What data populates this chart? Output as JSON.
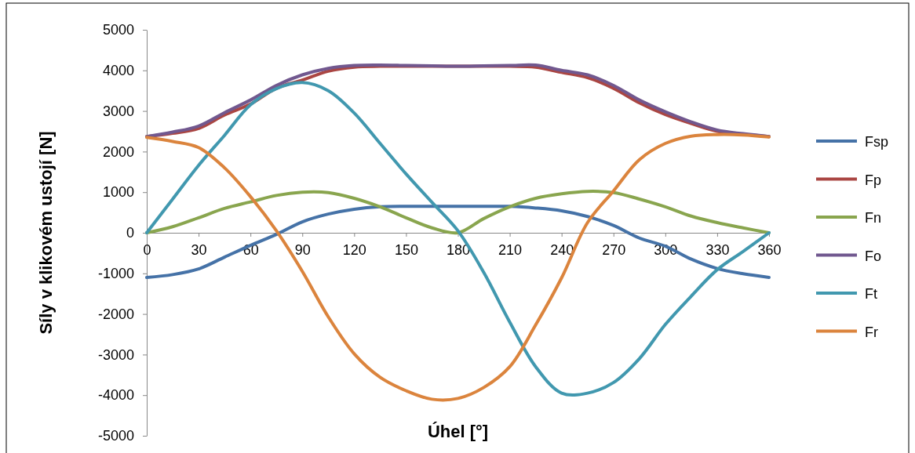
{
  "chart_data": {
    "type": "line",
    "xlabel": "Úhel [°]",
    "ylabel": "Síly v klikovém ustojí [N]",
    "x": [
      0,
      15,
      30,
      45,
      60,
      75,
      90,
      105,
      120,
      135,
      150,
      165,
      180,
      195,
      210,
      225,
      240,
      255,
      270,
      285,
      300,
      315,
      330,
      345,
      360
    ],
    "xlim": [
      0,
      360
    ],
    "xticks": [
      0,
      30,
      60,
      90,
      120,
      150,
      180,
      210,
      240,
      270,
      300,
      330,
      360
    ],
    "ylim": [
      -5000,
      5000
    ],
    "yticks": [
      -5000,
      -4000,
      -3000,
      -2000,
      -1000,
      0,
      1000,
      2000,
      3000,
      4000,
      5000
    ],
    "grid": false,
    "legend": "right",
    "marker": "none",
    "line_style": "solid",
    "series": [
      {
        "name": "Fsp",
        "color": "#4572a7",
        "values": [
          -1100,
          -1030,
          -890,
          -600,
          -310,
          -40,
          270,
          460,
          580,
          640,
          650,
          650,
          650,
          650,
          650,
          610,
          540,
          400,
          180,
          -130,
          -330,
          -650,
          -880,
          -1010,
          -1100
        ]
      },
      {
        "name": "Fp",
        "color": "#aa4643",
        "values": [
          2370,
          2450,
          2570,
          2900,
          3170,
          3560,
          3760,
          3980,
          4080,
          4100,
          4100,
          4100,
          4100,
          4100,
          4100,
          4080,
          3950,
          3820,
          3560,
          3200,
          2910,
          2690,
          2500,
          2430,
          2370
        ]
      },
      {
        "name": "Fn",
        "color": "#89a54e",
        "values": [
          0,
          150,
          370,
          600,
          760,
          920,
          1000,
          990,
          850,
          640,
          370,
          120,
          0,
          350,
          640,
          850,
          960,
          1020,
          990,
          830,
          640,
          410,
          250,
          120,
          0
        ]
      },
      {
        "name": "Fo",
        "color": "#71588f",
        "values": [
          2370,
          2480,
          2630,
          2960,
          3270,
          3630,
          3890,
          4050,
          4120,
          4130,
          4120,
          4110,
          4100,
          4110,
          4120,
          4130,
          4000,
          3890,
          3630,
          3270,
          2980,
          2730,
          2530,
          2440,
          2370
        ]
      },
      {
        "name": "Ft",
        "color": "#4198af",
        "values": [
          0,
          830,
          1660,
          2400,
          3150,
          3550,
          3700,
          3500,
          2950,
          2200,
          1450,
          750,
          50,
          -980,
          -2200,
          -3300,
          -3950,
          -3950,
          -3690,
          -3100,
          -2260,
          -1560,
          -910,
          -460,
          0
        ]
      },
      {
        "name": "Fr",
        "color": "#db843d",
        "values": [
          2350,
          2250,
          2100,
          1600,
          890,
          50,
          -950,
          -2070,
          -2980,
          -3560,
          -3890,
          -4100,
          -4080,
          -3810,
          -3300,
          -2270,
          -1110,
          250,
          1030,
          1800,
          2200,
          2380,
          2420,
          2410,
          2360
        ]
      }
    ]
  }
}
